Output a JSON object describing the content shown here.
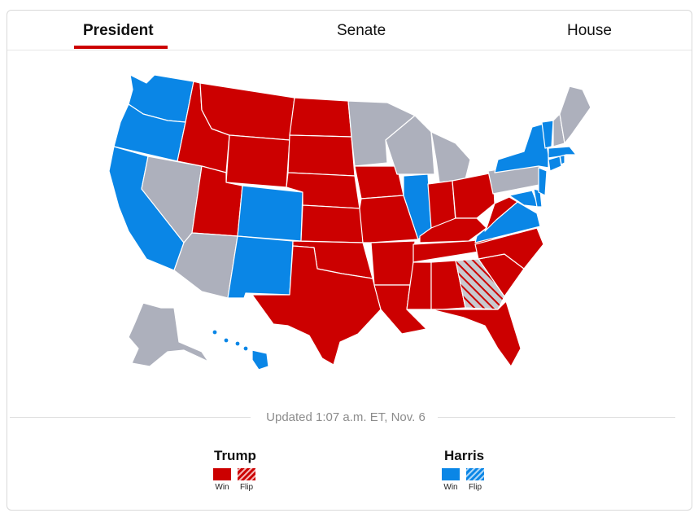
{
  "tabs": [
    {
      "label": "President",
      "active": true
    },
    {
      "label": "Senate",
      "active": false
    },
    {
      "label": "House",
      "active": false
    }
  ],
  "colors": {
    "trump": "#cc0000",
    "harris": "#0a86e6",
    "uncalled": "#adb0bc",
    "accent": "#cc0000"
  },
  "status": {
    "updated": "Updated 1:07 a.m. ET, Nov. 6"
  },
  "legend": {
    "trump": {
      "name": "Trump",
      "win_label": "Win",
      "flip_label": "Flip"
    },
    "harris": {
      "name": "Harris",
      "win_label": "Win",
      "flip_label": "Flip"
    }
  },
  "states": {
    "trump_win": [
      "ID",
      "MT",
      "WY",
      "ND",
      "SD",
      "NE",
      "KS",
      "OK",
      "TX",
      "UT",
      "IA",
      "MO",
      "AR",
      "LA",
      "MS",
      "AL",
      "TN",
      "KY",
      "IN",
      "OH",
      "WV",
      "SC",
      "NC",
      "FL"
    ],
    "trump_flip": [
      "GA"
    ],
    "harris_win": [
      "WA",
      "OR",
      "CA",
      "CO",
      "NM",
      "IL",
      "NY",
      "VT",
      "MA",
      "RI",
      "VA",
      "MD",
      "DE",
      "NJ",
      "HI",
      "CT"
    ],
    "uncalled": [
      "NV",
      "AZ",
      "MN",
      "WI",
      "MI",
      "PA",
      "ME",
      "NH",
      "AK"
    ]
  }
}
